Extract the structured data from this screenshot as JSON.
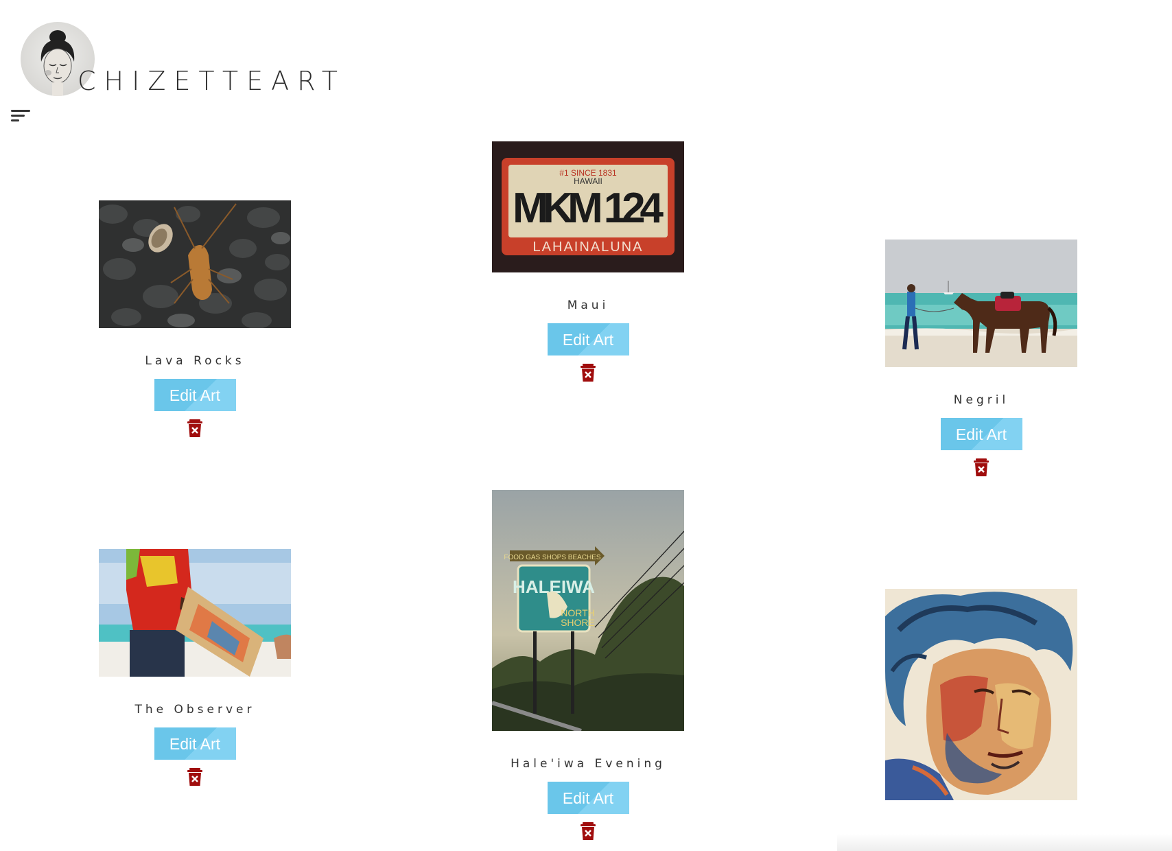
{
  "header": {
    "brand": "CHIZETTEART",
    "menu_icon": "hamburger-menu-icon"
  },
  "gallery": {
    "edit_label": "Edit Art",
    "delete_icon": "trash-delete-icon",
    "items": [
      {
        "title": "Lava Rocks"
      },
      {
        "title": "Maui"
      },
      {
        "title": "Negril"
      },
      {
        "title": "The Observer"
      },
      {
        "title": "Hale'iwa Evening"
      },
      {
        "title": ""
      }
    ]
  },
  "colors": {
    "button": "#6ac6ea",
    "delete": "#a00d0d",
    "text": "#333333"
  }
}
